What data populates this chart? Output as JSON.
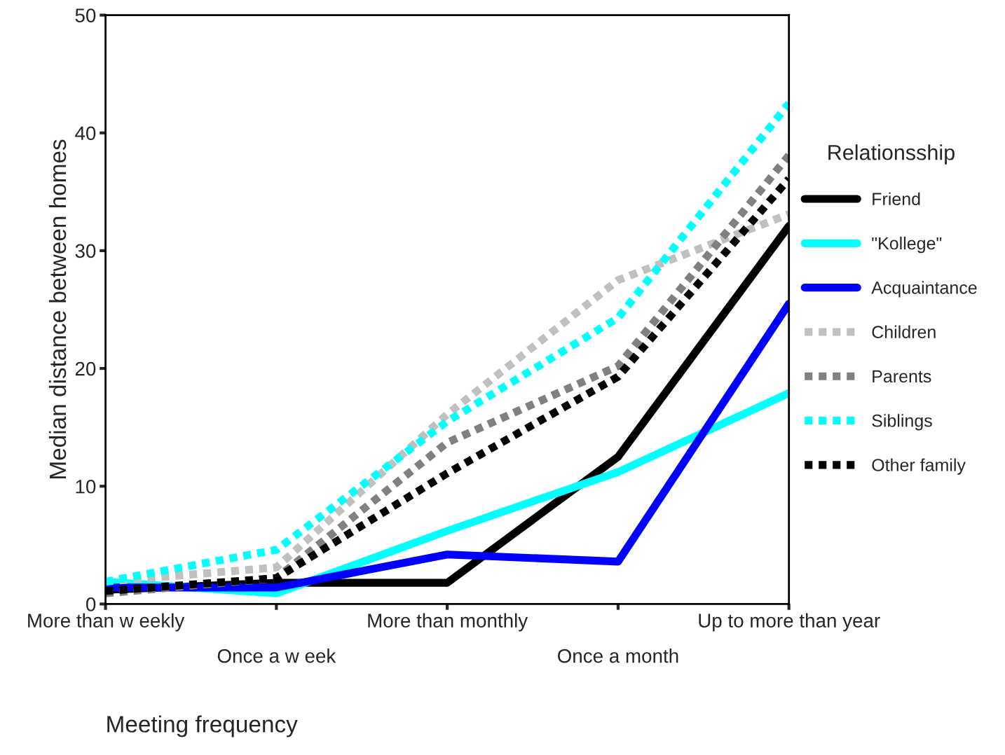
{
  "chart_data": {
    "type": "line",
    "xlabel": "Meeting frequency",
    "ylabel": "Median distance between homes",
    "legend_title": "Relationsship",
    "legend": "right",
    "grid": false,
    "categories": [
      "More than w eekly",
      "Once a w eek",
      "More than monthly",
      "Once a month",
      "Up to more than year"
    ],
    "ylim": [
      0,
      50
    ],
    "yticks": [
      0,
      10,
      20,
      30,
      40,
      50
    ],
    "series": [
      {
        "name": "Friend",
        "color": "#000000",
        "line_style": "solid",
        "values": [
          1.2,
          1.8,
          1.8,
          12.5,
          32.1
        ]
      },
      {
        "name": "\"Kollege\"",
        "color": "#00ffff",
        "line_style": "solid",
        "values": [
          1.9,
          0.9,
          6.2,
          11.2,
          17.9
        ]
      },
      {
        "name": "Acquaintance",
        "color": "#0000ff",
        "line_style": "solid",
        "values": [
          1.4,
          1.4,
          4.2,
          3.6,
          25.5
        ]
      },
      {
        "name": "Children",
        "color": "#c0c0c0",
        "line_style": "dotted",
        "values": [
          1.9,
          3.1,
          16.1,
          27.5,
          33.1
        ]
      },
      {
        "name": "Parents",
        "color": "#808080",
        "line_style": "dotted",
        "values": [
          0.9,
          2.2,
          13.7,
          20.2,
          38.1
        ]
      },
      {
        "name": "Siblings",
        "color": "#00ffff",
        "line_style": "dotted",
        "values": [
          1.9,
          4.6,
          15.5,
          24.3,
          42.5
        ]
      },
      {
        "name": "Other family",
        "color": "#000000",
        "line_style": "dotted",
        "values": [
          1.1,
          2.2,
          11.1,
          19.3,
          36.1
        ]
      }
    ]
  }
}
